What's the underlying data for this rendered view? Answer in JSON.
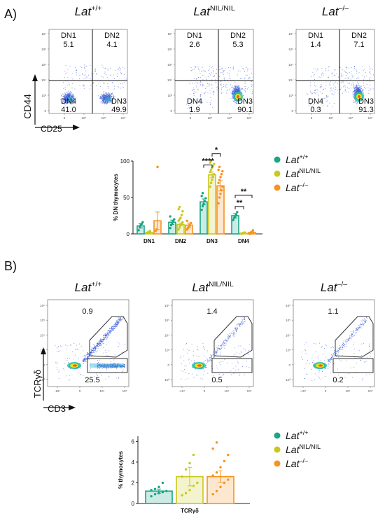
{
  "colors": {
    "wt": "#1aa585",
    "nil": "#c8c81e",
    "ko": "#f7931e",
    "axis": "#222222",
    "gate": "#333333",
    "dot": "#3b5bd6"
  },
  "panels": {
    "a_label": "A)",
    "b_label": "B)"
  },
  "genotypes": [
    {
      "base": "Lat",
      "sup": "+/+"
    },
    {
      "base": "Lat",
      "sup": "NIL/NIL"
    },
    {
      "base": "Lat",
      "sup": "–/–"
    }
  ],
  "flowA": {
    "y_axis_label": "CD44",
    "x_axis_label": "CD25",
    "quadrant_names": [
      "DN1",
      "DN2",
      "DN4",
      "DN3"
    ],
    "plots": [
      {
        "dn1": "5.1",
        "dn2": "4.1",
        "dn4": "41.0",
        "dn3": "49.9"
      },
      {
        "dn1": "2.6",
        "dn2": "5.3",
        "dn4": "1.9",
        "dn3": "90.1"
      },
      {
        "dn1": "1.4",
        "dn2": "7.1",
        "dn4": "0.3",
        "dn3": "91.3"
      }
    ],
    "tick_labels_y": [
      "10⁷",
      "10⁶",
      "10⁵",
      "10⁴",
      "10³",
      "0"
    ],
    "tick_labels_x": [
      "0",
      "10⁴",
      "10⁵",
      "10⁶"
    ]
  },
  "flowB": {
    "y_axis_label": "TCRγδ",
    "x_axis_label": "CD3",
    "plots": [
      {
        "upper": "0.9",
        "lower": "25.5"
      },
      {
        "upper": "1.4",
        "lower": "0.5"
      },
      {
        "upper": "1.1",
        "lower": "0.2"
      }
    ],
    "tick_labels_y": [
      "10⁶",
      "10⁵",
      "10⁴",
      "10³",
      "0",
      "-10³"
    ],
    "tick_labels_x": [
      "-10⁴",
      "0",
      "10⁴",
      "10⁵"
    ]
  },
  "legend": [
    {
      "base": "Lat",
      "sup": "+/+",
      "color_key": "wt"
    },
    {
      "base": "Lat",
      "sup": "NIL/NIL",
      "color_key": "nil"
    },
    {
      "base": "Lat",
      "sup": "–/–",
      "color_key": "ko"
    }
  ],
  "chart_data": [
    {
      "type": "bar",
      "title": "",
      "xlabel": "",
      "ylabel": "% DN thymocytes",
      "ylim": [
        0,
        100
      ],
      "yticks": [
        0,
        50,
        100
      ],
      "categories": [
        "DN1",
        "DN2",
        "DN3",
        "DN4"
      ],
      "series": [
        {
          "name": "Lat+/+",
          "values": [
            11,
            16,
            44,
            25
          ],
          "errors": [
            3,
            3,
            4,
            3
          ]
        },
        {
          "name": "LatNIL/NIL",
          "values": [
            2,
            13,
            81,
            1
          ],
          "errors": [
            1,
            2,
            4,
            0.5
          ]
        },
        {
          "name": "Lat–/–",
          "values": [
            18,
            12,
            66,
            2
          ],
          "errors": [
            12,
            3,
            7,
            1
          ]
        }
      ],
      "points": [
        [
          [
            5,
            9,
            12,
            14,
            16
          ],
          [
            8,
            12,
            15,
            18,
            20,
            24
          ],
          [
            33,
            38,
            41,
            45,
            49,
            52,
            56
          ],
          [
            19,
            22,
            24,
            27,
            30
          ]
        ],
        [
          [
            1,
            2,
            3,
            4
          ],
          [
            6,
            9,
            12,
            14,
            16,
            18,
            20,
            22,
            26,
            31,
            34,
            37
          ],
          [
            65,
            70,
            74,
            78,
            82,
            85,
            88,
            91,
            93,
            96,
            98,
            100
          ],
          [
            0,
            1,
            1,
            2
          ]
        ],
        [
          [
            4,
            6,
            92
          ],
          [
            6,
            8,
            10,
            12,
            15,
            18
          ],
          [
            42,
            50,
            55,
            60,
            65,
            70,
            74,
            78,
            82,
            86,
            88,
            92
          ],
          [
            0,
            1,
            3,
            5
          ]
        ]
      ],
      "significance": [
        {
          "label": "*",
          "category": "DN3",
          "from": 1,
          "to": 2
        },
        {
          "label": "****",
          "category": "DN3",
          "from": 0,
          "to": 1
        },
        {
          "label": "**",
          "category": "DN4",
          "from": 0,
          "to": 2
        },
        {
          "label": "**",
          "category": "DN4",
          "from": 0,
          "to": 1
        }
      ]
    },
    {
      "type": "bar",
      "title": "",
      "xlabel": "",
      "ylabel": "% thymocytes",
      "ylim": [
        0,
        6.5
      ],
      "yticks": [
        0,
        2,
        4,
        6
      ],
      "categories": [
        "TCRγδ"
      ],
      "series": [
        {
          "name": "Lat+/+",
          "values": [
            1.2
          ],
          "errors": [
            0.2
          ]
        },
        {
          "name": "LatNIL/NIL",
          "values": [
            2.6
          ],
          "errors": [
            0.9
          ]
        },
        {
          "name": "Lat–/–",
          "values": [
            2.6
          ],
          "errors": [
            0.55
          ]
        }
      ],
      "points": [
        [
          [
            0.7,
            0.9,
            1.0,
            1.1,
            1.2,
            1.3,
            1.4,
            1.6,
            2.0
          ]
        ],
        [
          [
            0.8,
            1.0,
            1.3,
            1.7,
            2.0,
            2.6,
            3.3,
            3.9,
            4.7
          ]
        ],
        [
          [
            0.9,
            1.2,
            1.6,
            2.0,
            2.3,
            2.7,
            3.0,
            3.5,
            4.1,
            4.7,
            5.3,
            5.9
          ]
        ]
      ]
    }
  ]
}
